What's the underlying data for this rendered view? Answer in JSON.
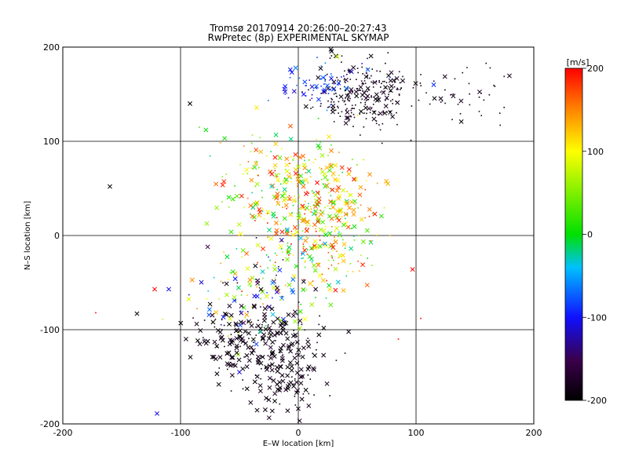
{
  "chart_data": {
    "type": "scatter",
    "title": "Tromsø 20170914 20:26:00–20:27:43",
    "subtitle": "RwPretec (8p) EXPERIMENTAL SKYMAP",
    "xlabel": "E–W location [km]",
    "ylabel": "N–S location [km]",
    "xlim": [
      -200,
      200
    ],
    "ylim": [
      -200,
      200
    ],
    "xticks": [
      "-200",
      "-100",
      "0",
      "100",
      "200"
    ],
    "yticks": [
      "-200",
      "-100",
      "0",
      "100",
      "200"
    ],
    "grid": true,
    "colorbar": {
      "label": "[m/s]",
      "range": [
        -200,
        200
      ],
      "ticks": [
        "-200",
        "-100",
        "0",
        "100",
        "200"
      ],
      "colormap": "black-purple-blue-cyan-green-yellow-orange-red"
    },
    "markers": {
      "x": "cross",
      "dot": "small point"
    },
    "clusters": [
      {
        "cx": 55,
        "cy": 150,
        "sx": 22,
        "sy": 18,
        "n": 260,
        "vmin": -200,
        "vmax": -170,
        "cross": 0.25
      },
      {
        "cx": 20,
        "cy": 160,
        "sx": 20,
        "sy": 12,
        "n": 60,
        "vmin": -120,
        "vmax": -60,
        "cross": 0.4
      },
      {
        "cx": 140,
        "cy": 150,
        "sx": 25,
        "sy": 15,
        "n": 40,
        "vmin": -200,
        "vmax": -170,
        "cross": 0.2
      },
      {
        "cx": -15,
        "cy": 50,
        "sx": 30,
        "sy": 30,
        "n": 220,
        "vmin": -30,
        "vmax": 200,
        "cross": 0.5
      },
      {
        "cx": 20,
        "cy": 30,
        "sx": 25,
        "sy": 30,
        "n": 180,
        "vmin": 20,
        "vmax": 200,
        "cross": 0.45
      },
      {
        "cx": 10,
        "cy": -20,
        "sx": 25,
        "sy": 25,
        "n": 140,
        "vmin": -50,
        "vmax": 200,
        "cross": 0.4
      },
      {
        "cx": -40,
        "cy": -60,
        "sx": 25,
        "sy": 25,
        "n": 120,
        "vmin": -200,
        "vmax": 150,
        "cross": 0.5
      },
      {
        "cx": -20,
        "cy": -120,
        "sx": 25,
        "sy": 25,
        "n": 180,
        "vmin": -200,
        "vmax": -175,
        "cross": 0.7
      },
      {
        "cx": -60,
        "cy": -110,
        "sx": 15,
        "sy": 20,
        "n": 60,
        "vmin": -200,
        "vmax": -175,
        "cross": 0.7
      },
      {
        "cx": -15,
        "cy": -165,
        "sx": 15,
        "sy": 15,
        "n": 60,
        "vmin": -200,
        "vmax": -175,
        "cross": 0.7
      }
    ],
    "outliers": [
      {
        "x": -120,
        "y": -189,
        "v": -110,
        "m": "x"
      },
      {
        "x": -122,
        "y": -57,
        "v": 200,
        "m": "x"
      },
      {
        "x": -110,
        "y": -57,
        "v": -110,
        "m": "x"
      },
      {
        "x": -160,
        "y": 52,
        "v": -200,
        "m": "x"
      },
      {
        "x": -92,
        "y": 140,
        "v": -200,
        "m": "x"
      },
      {
        "x": 115,
        "y": 160,
        "v": -90,
        "m": "x"
      },
      {
        "x": 33,
        "y": 190,
        "v": 80,
        "m": "x"
      },
      {
        "x": 28,
        "y": 90,
        "v": 150,
        "m": "x"
      },
      {
        "x": 97,
        "y": -36,
        "v": 200,
        "m": "x"
      },
      {
        "x": 76,
        "y": 55,
        "v": 130,
        "m": "x"
      },
      {
        "x": -137,
        "y": -83,
        "v": -200,
        "m": "x"
      },
      {
        "x": -50,
        "y": -145,
        "v": -110,
        "m": "x"
      },
      {
        "x": -172,
        "y": -82,
        "v": 200,
        "m": "dot"
      },
      {
        "x": 85,
        "y": -110,
        "v": 200,
        "m": "dot"
      },
      {
        "x": 104,
        "y": -88,
        "v": 200,
        "m": "dot"
      }
    ]
  }
}
